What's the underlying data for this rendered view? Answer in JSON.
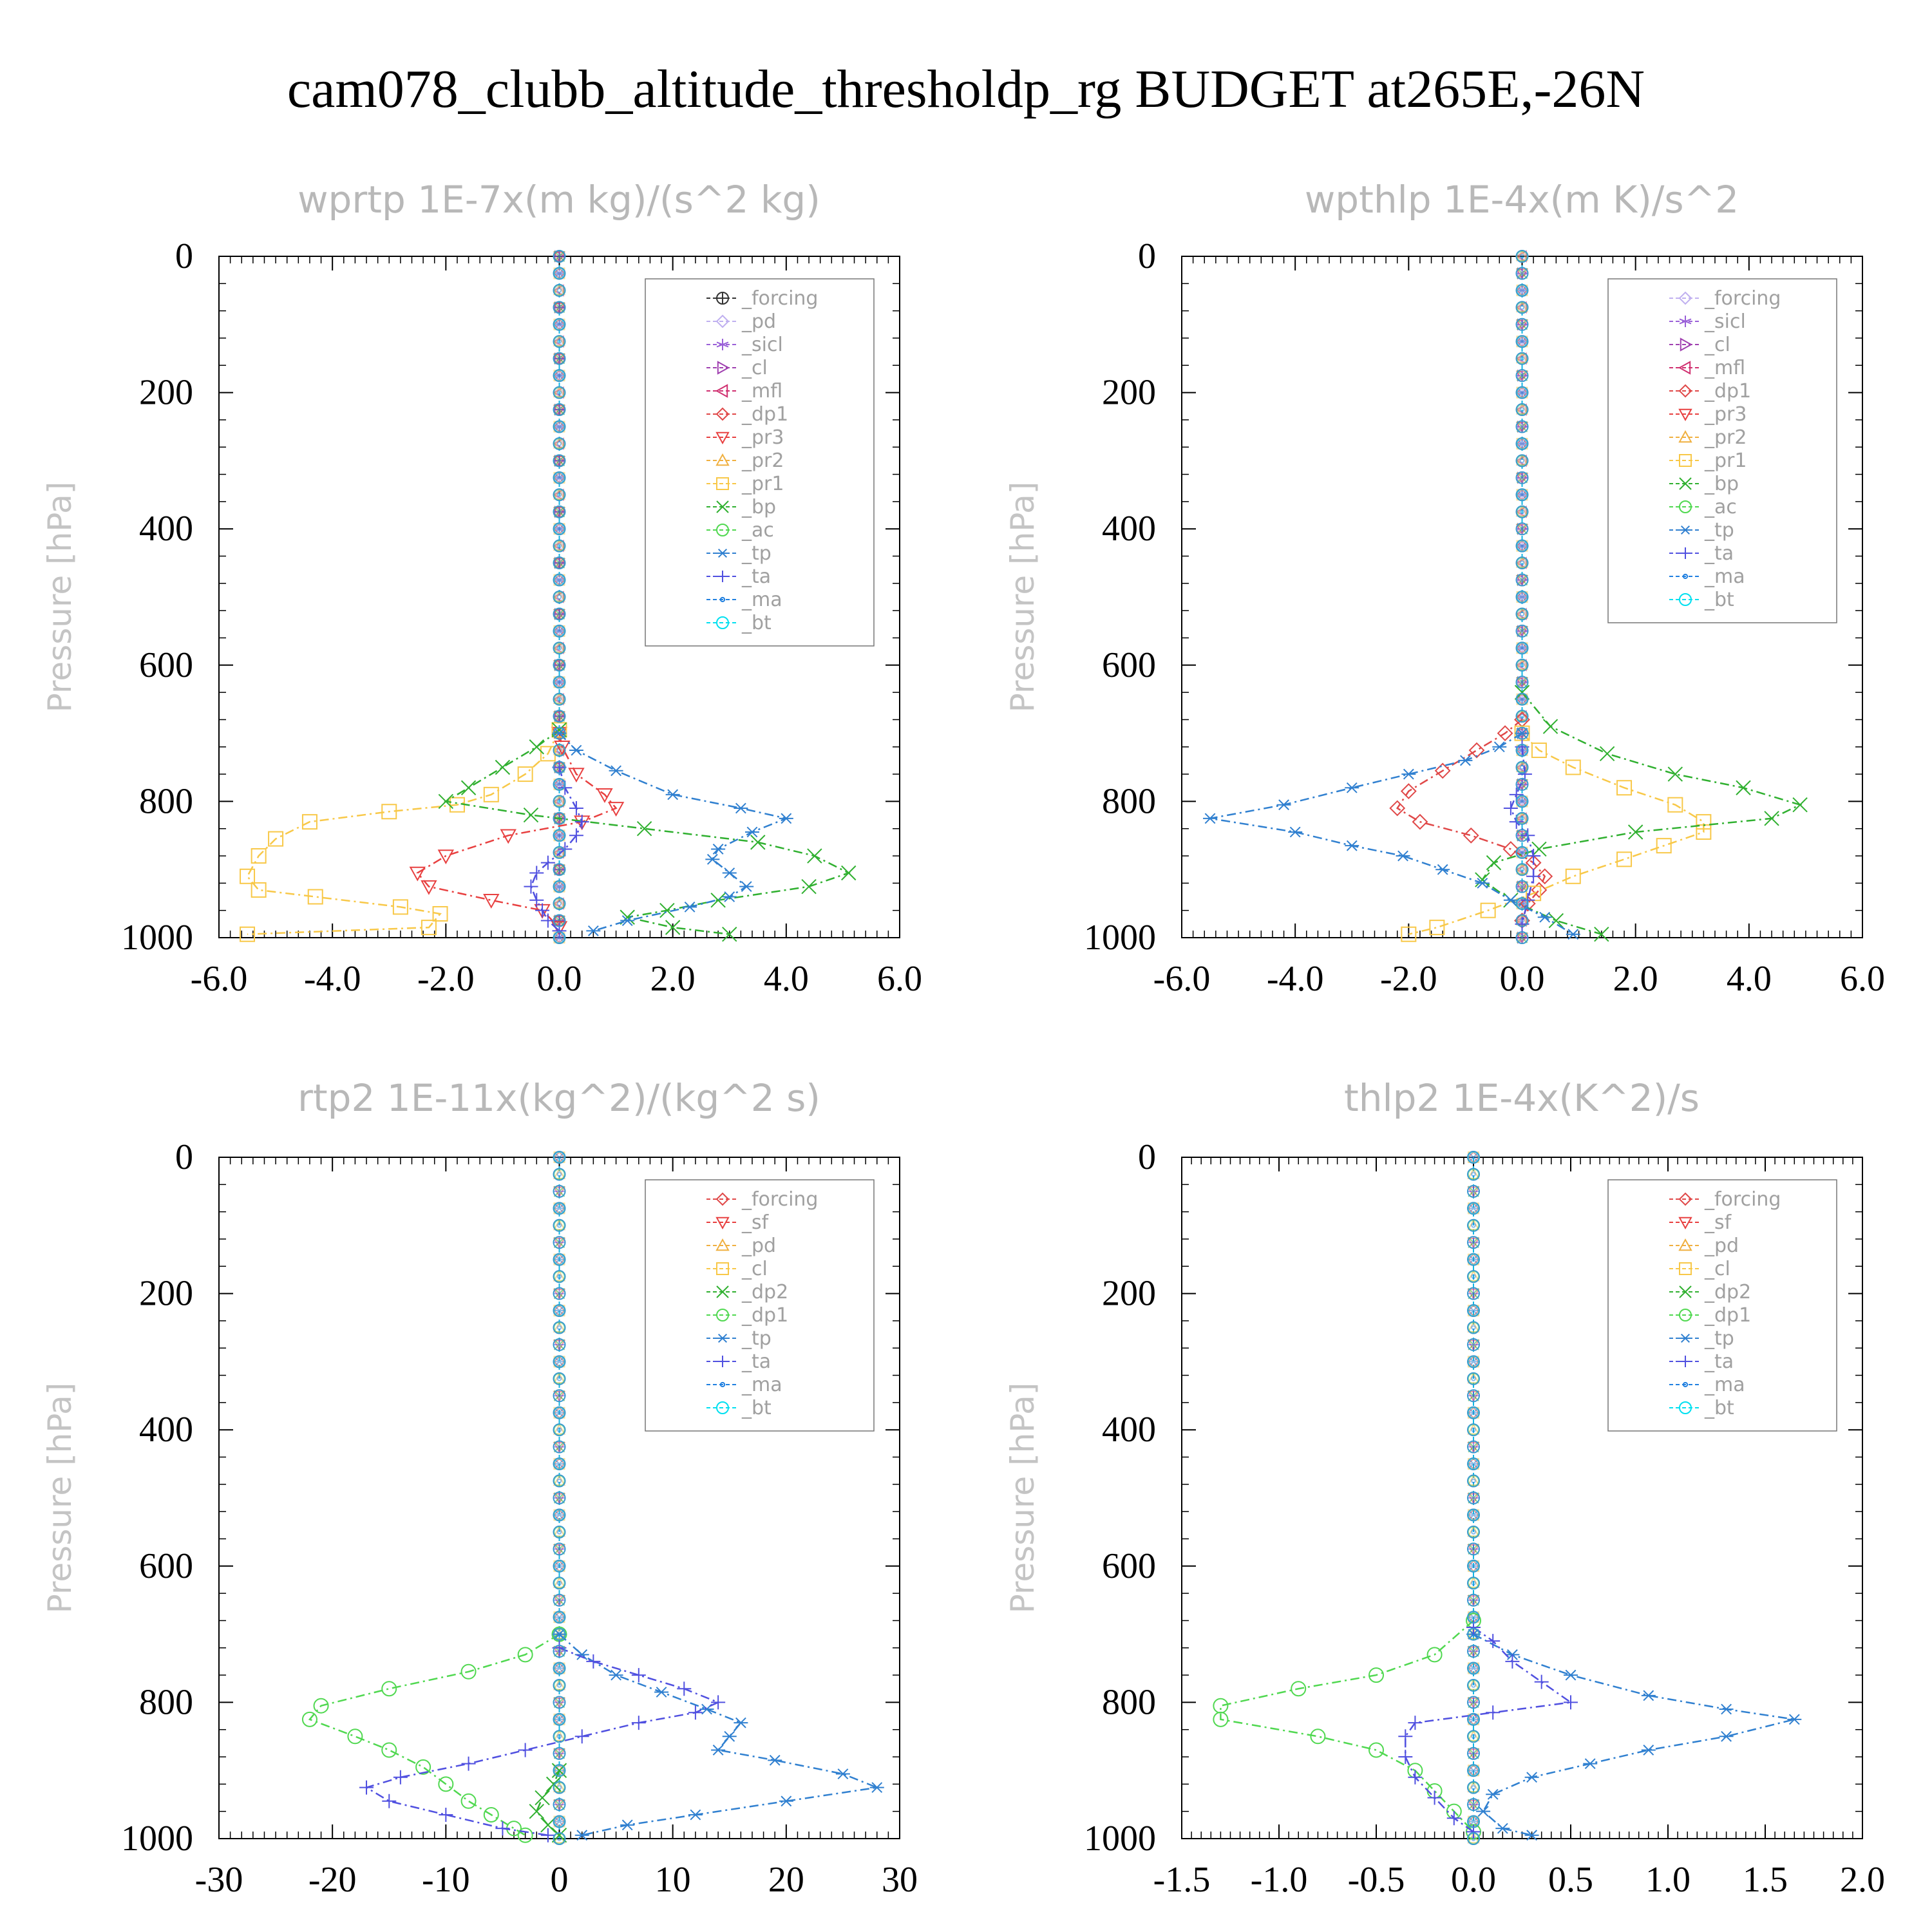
{
  "title": "cam078_clubb_altitude_thresholdp_rg  BUDGET at265E,-26N",
  "chart_data": [
    {
      "type": "line",
      "title": "wprtp   1E-7x(m kg)/(s^2 kg)",
      "ylabel": "Pressure [hPa]",
      "xlim": [
        -6,
        6
      ],
      "xticks": [
        "-6.0",
        "-4.0",
        "-2.0",
        "0.0",
        "2.0",
        "4.0",
        "6.0"
      ],
      "ylim": [
        0,
        1000
      ],
      "yticks": [
        "0",
        "200",
        "400",
        "600",
        "800",
        "1000"
      ],
      "y_inverted": true,
      "legend_position": "top-right",
      "series": [
        {
          "name": "_forcing",
          "color": "#333333",
          "marker": "circle-plus",
          "x": [],
          "y": []
        },
        {
          "name": "_pd",
          "color": "#c0b0f0",
          "marker": "diamond",
          "x": [],
          "y": []
        },
        {
          "name": "_sicl",
          "color": "#9a60d8",
          "marker": "star",
          "x": [],
          "y": []
        },
        {
          "name": "_cl",
          "color": "#a040b0",
          "marker": "tri-right",
          "x": [],
          "y": []
        },
        {
          "name": "_mfl",
          "color": "#d03070",
          "marker": "tri-left",
          "x": [],
          "y": []
        },
        {
          "name": "_dp1",
          "color": "#e04848",
          "marker": "diamond",
          "x": [],
          "y": []
        },
        {
          "name": "_pr3",
          "color": "#e84040",
          "marker": "tri-down",
          "x": [
            0,
            0.05,
            0.3,
            0.8,
            1.0,
            0.4,
            -0.9,
            -2.0,
            -2.5,
            -2.3,
            -1.2,
            -0.3,
            0
          ],
          "y": [
            700,
            720,
            760,
            790,
            810,
            830,
            850,
            880,
            905,
            925,
            945,
            960,
            985
          ]
        },
        {
          "name": "_pr2",
          "color": "#f0b040",
          "marker": "tri-up",
          "x": [],
          "y": []
        },
        {
          "name": "_pr1",
          "color": "#f8c848",
          "marker": "square",
          "x": [
            0,
            -0.2,
            -0.6,
            -1.2,
            -1.8,
            -3.0,
            -4.4,
            -5.0,
            -5.3,
            -5.5,
            -5.3,
            -4.3,
            -2.8,
            -2.1,
            -2.3,
            -5.5
          ],
          "y": [
            695,
            730,
            760,
            790,
            805,
            815,
            830,
            855,
            880,
            910,
            930,
            940,
            955,
            965,
            985,
            995
          ]
        },
        {
          "name": "_bp",
          "color": "#30b030",
          "marker": "x",
          "x": [
            0,
            -0.4,
            -1.0,
            -1.6,
            -2.0,
            -0.5,
            1.5,
            3.5,
            4.5,
            5.1,
            4.4,
            2.8,
            1.9,
            1.2,
            2.0,
            3.0
          ],
          "y": [
            695,
            720,
            750,
            780,
            800,
            820,
            840,
            860,
            880,
            905,
            925,
            945,
            960,
            970,
            985,
            995
          ]
        },
        {
          "name": "_ac",
          "color": "#50d850",
          "marker": "circle",
          "x": [],
          "y": []
        },
        {
          "name": "_tp",
          "color": "#3080d0",
          "marker": "asterisk",
          "x": [
            0,
            0.3,
            1.0,
            2.0,
            3.2,
            4.0,
            3.4,
            2.8,
            2.7,
            3.0,
            3.3,
            3.0,
            2.3,
            1.2,
            0.6
          ],
          "y": [
            700,
            725,
            755,
            790,
            810,
            825,
            845,
            870,
            885,
            905,
            925,
            940,
            955,
            975,
            990
          ]
        },
        {
          "name": "_ta",
          "color": "#5050e0",
          "marker": "plus",
          "x": [
            0,
            0.1,
            0.3,
            0.4,
            0.3,
            0.1,
            -0.2,
            -0.4,
            -0.5,
            -0.4,
            -0.3,
            -0.2,
            0
          ],
          "y": [
            750,
            780,
            810,
            830,
            850,
            870,
            890,
            905,
            925,
            945,
            960,
            975,
            990
          ]
        },
        {
          "name": "_ma",
          "color": "#2080e0",
          "marker": "dot",
          "x": [],
          "y": []
        },
        {
          "name": "_bt",
          "color": "#00e0f0",
          "marker": "filled-circle",
          "x": [],
          "y": []
        }
      ]
    },
    {
      "type": "line",
      "title": "wpthlp   1E-4x(m K)/s^2",
      "ylabel": "Pressure [hPa]",
      "xlim": [
        -6,
        6
      ],
      "xticks": [
        "-6.0",
        "-4.0",
        "-2.0",
        "0.0",
        "2.0",
        "4.0",
        "6.0"
      ],
      "ylim": [
        0,
        1000
      ],
      "yticks": [
        "0",
        "200",
        "400",
        "600",
        "800",
        "1000"
      ],
      "y_inverted": true,
      "legend_position": "top-right",
      "series": [
        {
          "name": "_forcing",
          "color": "#c0b0f0",
          "marker": "diamond",
          "x": [],
          "y": []
        },
        {
          "name": "_sicl",
          "color": "#9a60d8",
          "marker": "star",
          "x": [],
          "y": []
        },
        {
          "name": "_cl",
          "color": "#a040b0",
          "marker": "tri-right",
          "x": [],
          "y": []
        },
        {
          "name": "_mfl",
          "color": "#d03070",
          "marker": "tri-left",
          "x": [],
          "y": []
        },
        {
          "name": "_dp1",
          "color": "#e04848",
          "marker": "diamond",
          "x": [
            0,
            -0.3,
            -0.8,
            -1.4,
            -2.0,
            -2.2,
            -1.8,
            -0.9,
            -0.2,
            0.2,
            0.4,
            0.3,
            0.1,
            0
          ],
          "y": [
            680,
            700,
            725,
            755,
            785,
            810,
            830,
            850,
            870,
            890,
            910,
            930,
            950,
            975
          ]
        },
        {
          "name": "_pr3",
          "color": "#e84040",
          "marker": "tri-down",
          "x": [],
          "y": []
        },
        {
          "name": "_pr2",
          "color": "#f0b040",
          "marker": "tri-up",
          "x": [],
          "y": []
        },
        {
          "name": "_pr1",
          "color": "#f8c848",
          "marker": "square",
          "x": [
            0,
            0.3,
            0.9,
            1.8,
            2.7,
            3.2,
            3.2,
            2.5,
            1.8,
            0.9,
            0.2,
            -0.6,
            -1.5,
            -2.0
          ],
          "y": [
            700,
            725,
            750,
            780,
            805,
            830,
            845,
            865,
            885,
            910,
            935,
            960,
            985,
            995
          ]
        },
        {
          "name": "_bp",
          "color": "#30b030",
          "marker": "x",
          "x": [
            0,
            0.5,
            1.5,
            2.7,
            3.9,
            4.9,
            4.4,
            2.0,
            0.3,
            -0.5,
            -0.7,
            -0.2,
            0.6,
            1.4
          ],
          "y": [
            640,
            690,
            730,
            760,
            780,
            805,
            825,
            845,
            870,
            890,
            915,
            945,
            975,
            995
          ]
        },
        {
          "name": "_ac",
          "color": "#50d850",
          "marker": "circle",
          "x": [],
          "y": []
        },
        {
          "name": "_tp",
          "color": "#3080d0",
          "marker": "asterisk",
          "x": [
            0,
            -0.4,
            -1.0,
            -2.0,
            -3.0,
            -4.2,
            -5.5,
            -4.0,
            -3.0,
            -2.1,
            -1.4,
            -0.7,
            -0.2,
            0.4,
            0.9
          ],
          "y": [
            700,
            720,
            740,
            760,
            780,
            805,
            825,
            845,
            865,
            880,
            900,
            920,
            945,
            970,
            995
          ]
        },
        {
          "name": "_ta",
          "color": "#5050e0",
          "marker": "plus",
          "x": [
            0,
            0.05,
            -0.1,
            -0.2,
            -0.1,
            0.1,
            0.2,
            0.2,
            0.1,
            0
          ],
          "y": [
            720,
            760,
            790,
            810,
            830,
            850,
            880,
            910,
            945,
            980
          ]
        },
        {
          "name": "_ma",
          "color": "#2080e0",
          "marker": "dot",
          "x": [],
          "y": []
        },
        {
          "name": "_bt",
          "color": "#00e0f0",
          "marker": "filled-circle",
          "x": [],
          "y": []
        }
      ]
    },
    {
      "type": "line",
      "title": "rtp2   1E-11x(kg^2)/(kg^2 s)",
      "ylabel": "Pressure [hPa]",
      "xlim": [
        -30,
        30
      ],
      "xticks": [
        "-30",
        "-20",
        "-10",
        "0",
        "10",
        "20",
        "30"
      ],
      "ylim": [
        0,
        1000
      ],
      "yticks": [
        "0",
        "200",
        "400",
        "600",
        "800",
        "1000"
      ],
      "y_inverted": true,
      "legend_position": "top-right",
      "series": [
        {
          "name": "_forcing",
          "color": "#e04848",
          "marker": "diamond",
          "x": [],
          "y": []
        },
        {
          "name": "_sf",
          "color": "#e84040",
          "marker": "tri-down",
          "x": [],
          "y": []
        },
        {
          "name": "_pd",
          "color": "#f0b040",
          "marker": "tri-up",
          "x": [],
          "y": []
        },
        {
          "name": "_cl",
          "color": "#f8c848",
          "marker": "square",
          "x": [],
          "y": []
        },
        {
          "name": "_dp2",
          "color": "#30b030",
          "marker": "x",
          "x": [
            0,
            -0.5,
            -1.5,
            -2.0,
            -1.0,
            0
          ],
          "y": [
            900,
            920,
            940,
            960,
            980,
            995
          ]
        },
        {
          "name": "_dp1",
          "color": "#50d850",
          "marker": "circle",
          "x": [
            0,
            -3,
            -8,
            -15,
            -21,
            -22,
            -18,
            -15,
            -12,
            -10,
            -8,
            -6,
            -4,
            -3
          ],
          "y": [
            700,
            730,
            755,
            780,
            805,
            825,
            850,
            870,
            895,
            920,
            945,
            965,
            985,
            995
          ]
        },
        {
          "name": "_tp",
          "color": "#3080d0",
          "marker": "asterisk",
          "x": [
            0,
            2,
            5,
            9,
            13,
            16,
            15,
            14,
            19,
            25,
            28,
            20,
            12,
            6,
            2
          ],
          "y": [
            700,
            730,
            760,
            785,
            810,
            830,
            850,
            870,
            885,
            905,
            925,
            945,
            965,
            980,
            995
          ]
        },
        {
          "name": "_ta",
          "color": "#5050e0",
          "marker": "plus",
          "x": [
            0,
            3,
            7,
            11,
            14,
            12,
            7,
            2,
            -3,
            -8,
            -14,
            -17,
            -15,
            -10,
            -5,
            -1
          ],
          "y": [
            720,
            740,
            760,
            780,
            800,
            815,
            830,
            850,
            870,
            890,
            910,
            925,
            945,
            965,
            985,
            995
          ]
        },
        {
          "name": "_ma",
          "color": "#2080e0",
          "marker": "dot",
          "x": [],
          "y": []
        },
        {
          "name": "_bt",
          "color": "#00e0f0",
          "marker": "filled-circle",
          "x": [],
          "y": []
        }
      ]
    },
    {
      "type": "line",
      "title": "thlp2   1E-4x(K^2)/s",
      "ylabel": "Pressure [hPa]",
      "xlim": [
        -1.5,
        2.0
      ],
      "xticks": [
        "-1.5",
        "-1.0",
        "-0.5",
        "0.0",
        "0.5",
        "1.0",
        "1.5",
        "2.0"
      ],
      "ylim": [
        0,
        1000
      ],
      "yticks": [
        "0",
        "200",
        "400",
        "600",
        "800",
        "1000"
      ],
      "y_inverted": true,
      "legend_position": "top-right",
      "series": [
        {
          "name": "_forcing",
          "color": "#e04848",
          "marker": "diamond",
          "x": [],
          "y": []
        },
        {
          "name": "_sf",
          "color": "#e84040",
          "marker": "tri-down",
          "x": [],
          "y": []
        },
        {
          "name": "_pd",
          "color": "#f0b040",
          "marker": "tri-up",
          "x": [],
          "y": []
        },
        {
          "name": "_cl",
          "color": "#f8c848",
          "marker": "square",
          "x": [],
          "y": []
        },
        {
          "name": "_dp2",
          "color": "#30b030",
          "marker": "x",
          "x": [],
          "y": []
        },
        {
          "name": "_dp1",
          "color": "#50d850",
          "marker": "circle",
          "x": [
            0,
            -0.2,
            -0.5,
            -0.9,
            -1.3,
            -1.3,
            -0.8,
            -0.5,
            -0.3,
            -0.2,
            -0.1,
            0
          ],
          "y": [
            680,
            730,
            760,
            780,
            805,
            825,
            850,
            870,
            900,
            930,
            960,
            990
          ]
        },
        {
          "name": "_tp",
          "color": "#3080d0",
          "marker": "asterisk",
          "x": [
            0,
            0.2,
            0.5,
            0.9,
            1.3,
            1.65,
            1.3,
            0.9,
            0.6,
            0.3,
            0.1,
            0.05,
            0.15,
            0.3
          ],
          "y": [
            700,
            730,
            760,
            790,
            810,
            825,
            850,
            870,
            890,
            910,
            935,
            960,
            985,
            995
          ]
        },
        {
          "name": "_ta",
          "color": "#5050e0",
          "marker": "plus",
          "x": [
            0,
            0.1,
            0.2,
            0.35,
            0.5,
            0.1,
            -0.3,
            -0.35,
            -0.35,
            -0.3,
            -0.2,
            -0.1,
            0
          ],
          "y": [
            690,
            710,
            740,
            770,
            800,
            815,
            830,
            850,
            880,
            910,
            940,
            970,
            990
          ]
        },
        {
          "name": "_ma",
          "color": "#2080e0",
          "marker": "dot",
          "x": [],
          "y": []
        },
        {
          "name": "_bt",
          "color": "#00e0f0",
          "marker": "filled-circle",
          "x": [],
          "y": []
        }
      ]
    }
  ]
}
